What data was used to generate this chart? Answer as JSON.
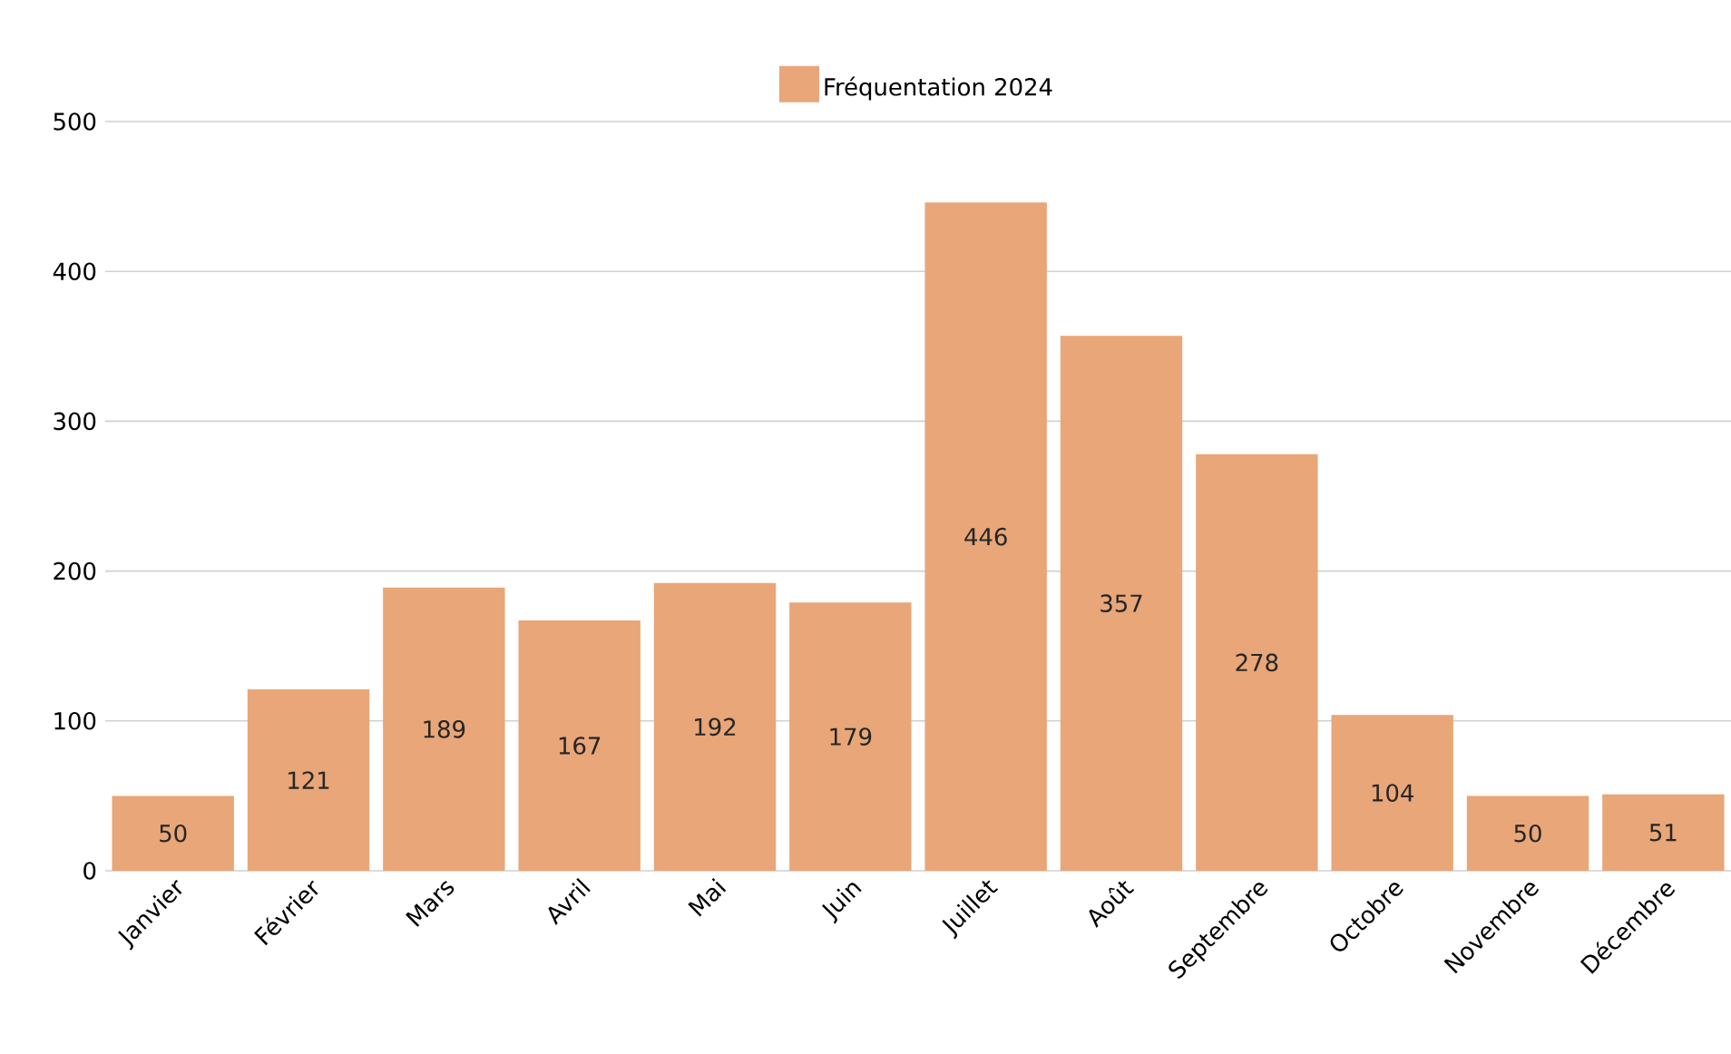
{
  "chart_data": {
    "type": "bar",
    "categories": [
      "Janvier",
      "Février",
      "Mars",
      "Avril",
      "Mai",
      "Juin",
      "Juillet",
      "Août",
      "Septembre",
      "Octobre",
      "Novembre",
      "Décembre"
    ],
    "series": [
      {
        "name": "Fréquentation 2024",
        "color": "#e8a679",
        "values": [
          50,
          121,
          189,
          167,
          192,
          179,
          446,
          357,
          278,
          104,
          50,
          51
        ]
      }
    ],
    "ylim": [
      0,
      500
    ],
    "yticks": [
      0,
      100,
      200,
      300,
      400,
      500
    ],
    "grid": "y",
    "legend": "top",
    "data_labels": true
  }
}
